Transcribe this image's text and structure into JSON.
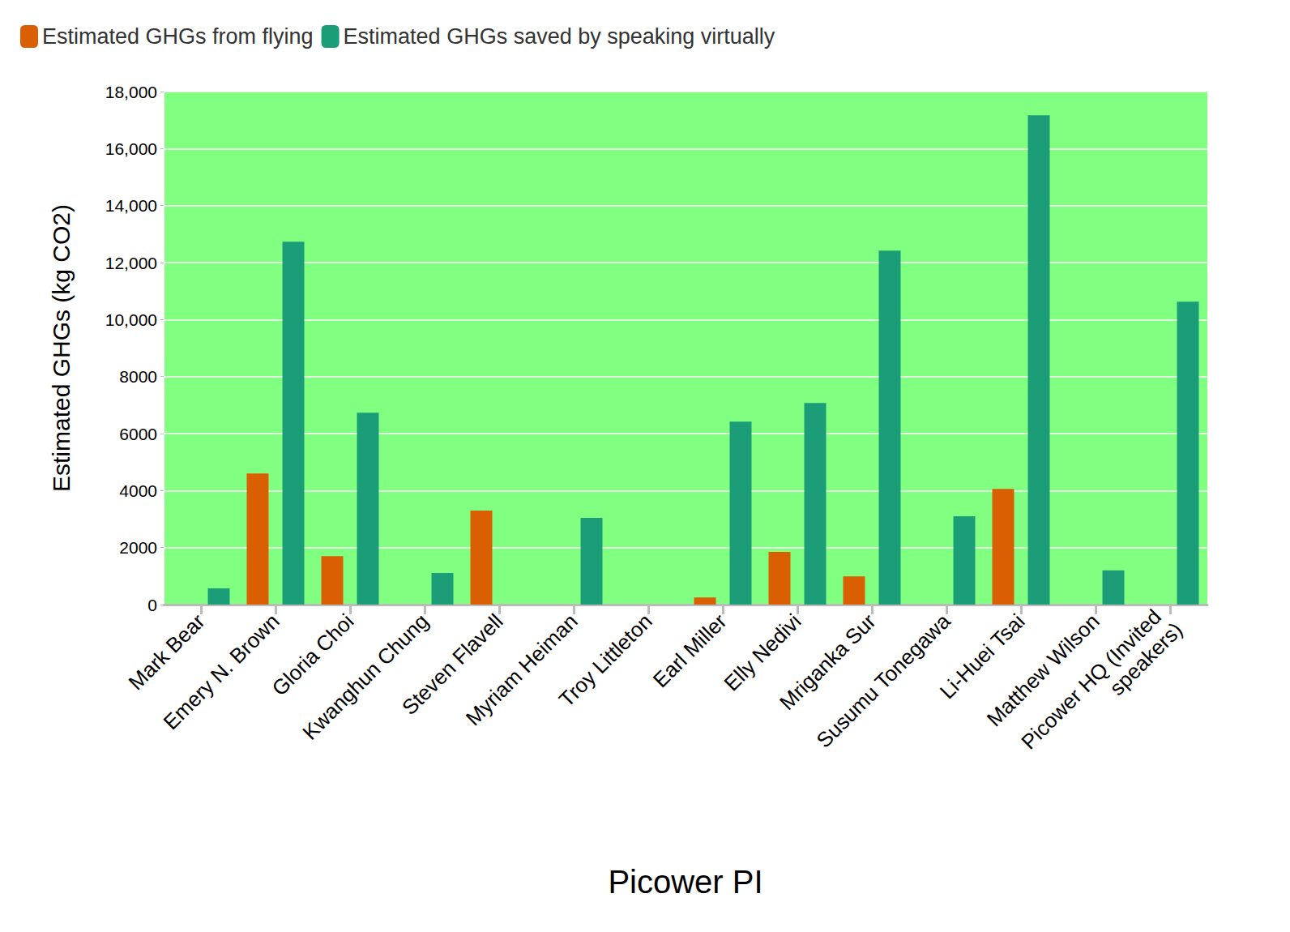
{
  "chart_data": {
    "type": "bar",
    "x_label": "Picower PI",
    "y_label": "Estimated GHGs (kg CO2)",
    "categories": [
      "Mark Bear",
      "Emery N. Brown",
      "Gloria Choi",
      "Kwanghun Chung",
      "Steven Flavell",
      "Myriam Heiman",
      "Troy Littleton",
      "Earl Miller",
      "Elly Nedivi",
      "Mriganka Sur",
      "Susumu Tonegawa",
      "Li-Huei Tsai",
      "Matthew Wilson",
      "Picower HQ (Invited speakers)"
    ],
    "series": [
      {
        "name": "Estimated GHGs from flying",
        "color": "#d95f02",
        "values": [
          0,
          4600,
          1700,
          0,
          3300,
          0,
          0,
          250,
          1850,
          990,
          0,
          4060,
          0,
          0
        ]
      },
      {
        "name": "Estimated GHGs saved by speaking virtually",
        "color": "#1b9e77",
        "values": [
          570,
          12730,
          6730,
          1110,
          0,
          3040,
          0,
          6420,
          7070,
          12420,
          3100,
          17170,
          1200,
          10630
        ]
      }
    ],
    "ylim": [
      0,
      18000
    ],
    "yticks": [
      0,
      2000,
      4000,
      6000,
      8000,
      {
        "value": 10000,
        "label": "10,000"
      },
      {
        "value": 12000,
        "label": "12,000"
      },
      {
        "value": 14000,
        "label": "14,000"
      },
      {
        "value": 16000,
        "label": "16,000"
      },
      {
        "value": 18000,
        "label": "18,000"
      }
    ],
    "grid": true,
    "legend": "top-left"
  }
}
